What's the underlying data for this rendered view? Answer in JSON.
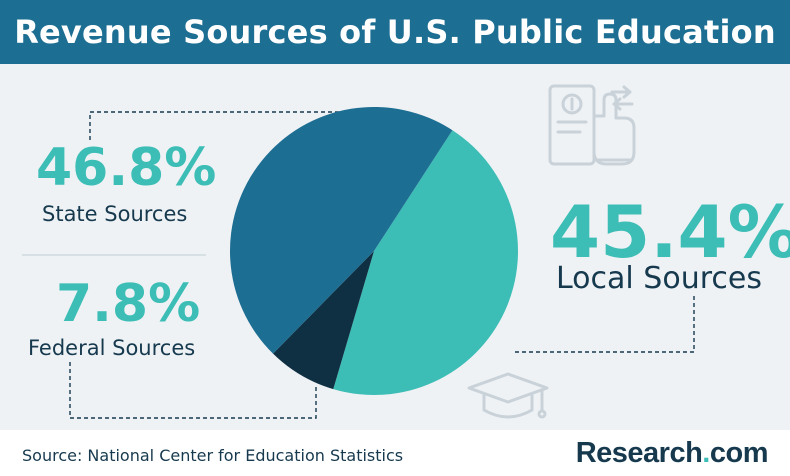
{
  "title": "Revenue Sources of U.S. Public Education",
  "source": "Source: National Center for Education Statistics",
  "brand": {
    "name": "Research",
    "dot": ".",
    "tld": "com"
  },
  "callouts": {
    "state": {
      "value": "46.8%",
      "label": "State Sources"
    },
    "local": {
      "value": "45.4%",
      "label": "Local Sources"
    },
    "federal": {
      "value": "7.8%",
      "label": "Federal Sources"
    }
  },
  "chart_data": {
    "type": "pie",
    "title": "Revenue Sources of U.S. Public Education",
    "slices": [
      {
        "name": "Local Sources",
        "value": 45.4,
        "color": "#3cbdb5"
      },
      {
        "name": "Federal Sources",
        "value": 7.8,
        "color": "#0f2f42"
      },
      {
        "name": "State Sources",
        "value": 46.8,
        "color": "#1d6e93"
      }
    ],
    "units": "%"
  },
  "colors": {
    "header": "#1d6e93",
    "accent": "#3cbdb5",
    "text": "#16394e",
    "background": "#eef2f5",
    "icon": "#c9d2d8"
  },
  "icons": [
    "payment-hand-icon",
    "graduation-cap-icon"
  ]
}
